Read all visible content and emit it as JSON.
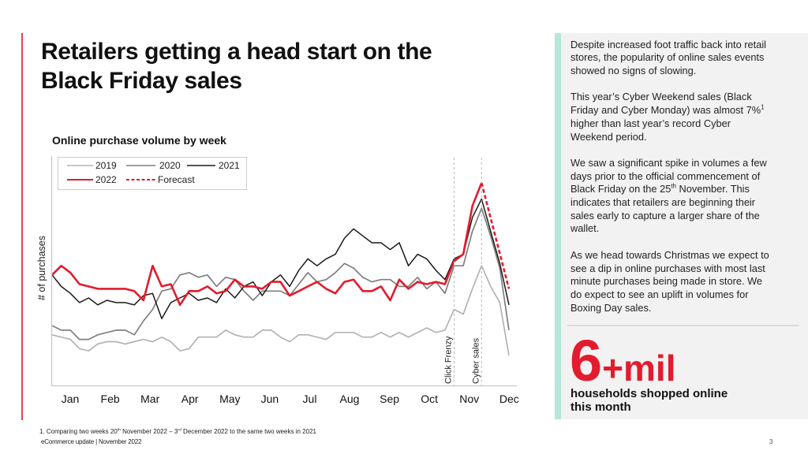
{
  "header": {
    "title_line1": "Retailers getting a head start on the",
    "title_line2": "Black Friday sales"
  },
  "colors": {
    "accent": "#e31b2e",
    "panel_stripe": "#b5e8da",
    "panel_bg": "#f2f2f2"
  },
  "chart_data": {
    "type": "line",
    "title": "Online purchase volume by week",
    "xlabel": "",
    "ylabel": "# of purchases",
    "x_tick_labels": [
      "Jan",
      "Feb",
      "Mar",
      "Apr",
      "May",
      "Jun",
      "Jul",
      "Aug",
      "Sep",
      "Oct",
      "Nov",
      "Dec"
    ],
    "xlim": [
      0,
      50
    ],
    "ylim": [
      0,
      100
    ],
    "grid": false,
    "legend_position": "top-left",
    "series": [
      {
        "name": "2019",
        "color": "#b3b3b3",
        "values": [
          22,
          21,
          20,
          16,
          15,
          18,
          19,
          19,
          18,
          19,
          20,
          19,
          21,
          19,
          15,
          16,
          21,
          21,
          21,
          24,
          22,
          21,
          21,
          24,
          24,
          21,
          19,
          22,
          22,
          21,
          20,
          23,
          23,
          23,
          21,
          21,
          23,
          21,
          23,
          21,
          23,
          25,
          23,
          24,
          33,
          31,
          42,
          52,
          43,
          36,
          13
        ]
      },
      {
        "name": "2020",
        "color": "#7f7f7f",
        "values": [
          26,
          24,
          24,
          20,
          20,
          22,
          23,
          24,
          24,
          22,
          28,
          33,
          41,
          42,
          48,
          49,
          47,
          48,
          43,
          47,
          46,
          41,
          37,
          41,
          41,
          41,
          39,
          44,
          49,
          45,
          46,
          49,
          53,
          51,
          47,
          45,
          46,
          46,
          43,
          43,
          47,
          42,
          45,
          40,
          52,
          52,
          67,
          77,
          65,
          51,
          24
        ]
      },
      {
        "name": "2021",
        "color": "#1a1a1a",
        "values": [
          48,
          43,
          40,
          36,
          38,
          35,
          37,
          36,
          36,
          35,
          39,
          40,
          29,
          36,
          38,
          40,
          37,
          38,
          36,
          42,
          38,
          43,
          45,
          39,
          45,
          48,
          43,
          50,
          55,
          52,
          55,
          57,
          64,
          68,
          65,
          62,
          62,
          59,
          62,
          52,
          57,
          55,
          50,
          46,
          55,
          57,
          73,
          81,
          67,
          53,
          35
        ]
      },
      {
        "name": "2022",
        "color": "#e31b2e",
        "values": [
          48,
          52,
          49,
          44,
          43,
          42,
          42,
          42,
          42,
          41,
          37,
          52,
          43,
          44,
          35,
          41,
          41,
          43,
          40,
          41,
          46,
          43,
          43,
          42,
          45,
          45,
          39,
          41,
          43,
          45,
          42,
          40,
          45,
          46,
          41,
          41,
          43,
          37,
          46,
          42,
          45,
          44,
          45,
          44,
          54,
          57,
          78,
          88
        ]
      }
    ],
    "forecast": {
      "name": "Forecast",
      "color": "#e31b2e",
      "x": [
        47,
        50
      ],
      "values": [
        88,
        42
      ]
    },
    "annotations": [
      {
        "label": "Click Frenzy",
        "x": 44
      },
      {
        "label": "Cyber sales",
        "x": 47
      }
    ]
  },
  "panel": {
    "p1": [
      "Despite increased foot traffic back into retail",
      "stores, the popularity of online sales events",
      "showed no signs of slowing."
    ],
    "p2": {
      "l1": "This year’s Cyber Weekend sales (Black",
      "l2": "Friday and Cyber Monday) was almost 7%",
      "l2_sup": "1",
      "l3": "higher than last year’s record Cyber",
      "l4": "Weekend period."
    },
    "p3": {
      "l1": "We saw a significant spike in volumes a few",
      "l2": "days prior to the official commencement of",
      "l3_a": "Black Friday on the 25",
      "l3_sup": "th",
      "l3_b": " November. This",
      "l4": "indicates that retailers are beginning their",
      "l5": "sales early to capture a larger share of the",
      "l6": "wallet."
    },
    "p4": [
      "As we head towards Christmas we expect to",
      "see a dip in online purchases with most last",
      "minute purchases being made in store. We",
      "do expect to see an uplift in volumes for",
      "Boxing Day sales."
    ],
    "stat": {
      "value": "6",
      "suffix": "+mil",
      "caption_line1": "households shopped online",
      "caption_line2": "this month"
    }
  },
  "footer": {
    "footnote_a": "1. Comparing two weeks 20",
    "footnote_sup1": "th",
    "footnote_b": " November 2022 – 3",
    "footnote_sup2": "rd",
    "footnote_c": " December 2022 to the same two weeks in 2021",
    "source": "eCommerce update | November 2022",
    "page_number": "3"
  }
}
